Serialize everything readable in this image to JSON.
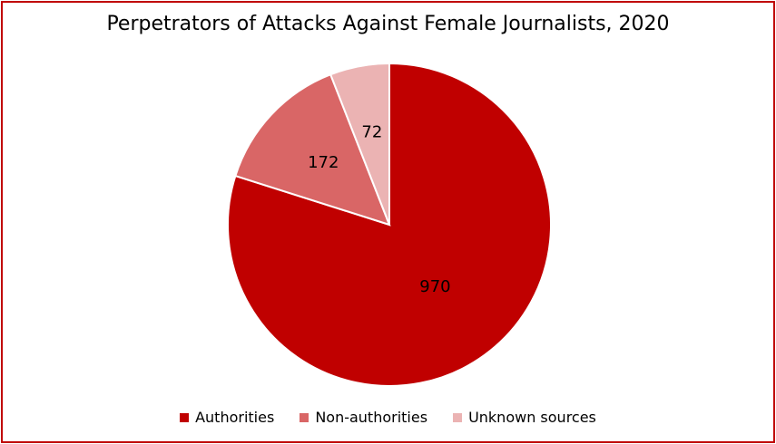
{
  "chart_data": {
    "type": "pie",
    "title": "Perpetrators of Attacks Against Female Journalists, 2020",
    "categories": [
      "Authorities",
      "Non-authorities",
      "Unknown sources"
    ],
    "values": [
      970,
      172,
      72
    ],
    "colors": [
      "#c00000",
      "#d96666",
      "#ebb3b3"
    ],
    "border_color": "#c00000",
    "legend_position": "bottom",
    "start_angle": "12 o'clock, clockwise"
  }
}
